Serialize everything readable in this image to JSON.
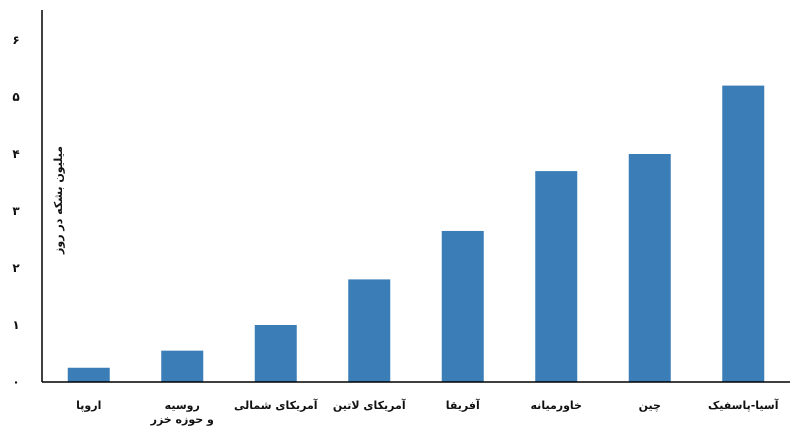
{
  "chart_data": {
    "type": "bar",
    "categories": [
      "اروپا",
      [
        "روسیه",
        "و حوزه خزر"
      ],
      "آمریکای شمالی",
      "آمریکای لاتین",
      "آفریقا",
      "خاورمیانه",
      "چین",
      "آسیا-پاسفیک"
    ],
    "values": [
      0.25,
      0.55,
      1.0,
      1.8,
      2.65,
      3.7,
      4.0,
      5.2
    ],
    "yticks": [
      "۰",
      "۱",
      "۲",
      "۳",
      "۴",
      "۵",
      "۶"
    ],
    "ylabel": "میلیون بشکه در روز",
    "ylim": [
      0,
      6
    ],
    "grid": false,
    "bar_color": "#3a7db7"
  }
}
